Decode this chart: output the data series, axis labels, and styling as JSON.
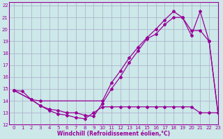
{
  "xlabel": "Windchill (Refroidissement éolien,°C)",
  "background_color": "#cce8e8",
  "grid_color": "#aaaacc",
  "line_color": "#990099",
  "xlim": [
    -0.5,
    23
  ],
  "ylim": [
    12,
    22.3
  ],
  "xticks": [
    0,
    1,
    2,
    3,
    4,
    5,
    6,
    7,
    8,
    9,
    10,
    11,
    12,
    13,
    14,
    15,
    16,
    17,
    18,
    19,
    20,
    21,
    22,
    23
  ],
  "yticks": [
    12,
    13,
    14,
    15,
    16,
    17,
    18,
    19,
    20,
    21,
    22
  ],
  "curve1_x": [
    0,
    1,
    2,
    3,
    4,
    5,
    6,
    7,
    8,
    9,
    10,
    11,
    12,
    13,
    14,
    15,
    16,
    17,
    18,
    19,
    20,
    21,
    22,
    23
  ],
  "curve1_y": [
    14.9,
    14.8,
    14.1,
    13.6,
    13.2,
    12.9,
    12.8,
    12.6,
    12.5,
    13.0,
    13.5,
    13.5,
    13.5,
    13.5,
    13.5,
    13.5,
    13.5,
    13.5,
    13.5,
    13.5,
    13.5,
    13.0,
    13.0,
    13.0
  ],
  "curve2_x": [
    0,
    2,
    3,
    10,
    11,
    12,
    13,
    14,
    15,
    16,
    17,
    18,
    19,
    20,
    21,
    22,
    23
  ],
  "curve2_y": [
    14.9,
    14.1,
    14.0,
    14.0,
    15.5,
    16.5,
    17.6,
    18.5,
    19.3,
    20.0,
    20.8,
    21.5,
    21.0,
    19.5,
    21.5,
    19.0,
    13.0
  ],
  "curve3_x": [
    0,
    2,
    3,
    4,
    5,
    6,
    7,
    8,
    9,
    10,
    11,
    12,
    13,
    14,
    15,
    16,
    17,
    18,
    19,
    20,
    21,
    22,
    23
  ],
  "curve3_y": [
    14.9,
    14.1,
    13.6,
    13.3,
    13.2,
    13.0,
    13.0,
    12.8,
    12.7,
    13.8,
    15.0,
    16.0,
    17.2,
    18.2,
    19.2,
    19.6,
    20.4,
    21.0,
    21.0,
    19.9,
    19.9,
    19.0,
    13.0
  ]
}
